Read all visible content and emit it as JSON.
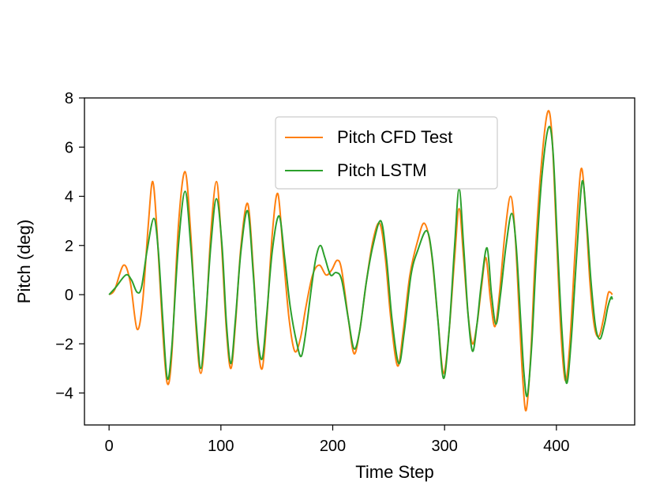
{
  "chart_data": {
    "type": "line",
    "title": "",
    "xlabel": "Time Step",
    "ylabel": "Pitch (deg)",
    "xlim": [
      -22,
      470
    ],
    "ylim": [
      -5.3,
      8
    ],
    "xticks": [
      0,
      100,
      200,
      300,
      400
    ],
    "yticks": [
      -4,
      -2,
      0,
      2,
      4,
      6,
      8
    ],
    "xtick_labels": [
      "0",
      "100",
      "200",
      "300",
      "400"
    ],
    "ytick_labels": [
      "−4",
      "−2",
      "0",
      "2",
      "4",
      "6",
      "8"
    ],
    "legend_position": "upper-center",
    "series": [
      {
        "name": "Pitch CFD Test",
        "color": "#ff7f0e",
        "points": [
          [
            0,
            0
          ],
          [
            5,
            0.2
          ],
          [
            13,
            1.2
          ],
          [
            19,
            0.5
          ],
          [
            25,
            -1.4
          ],
          [
            30,
            -0.3
          ],
          [
            35,
            2.8
          ],
          [
            39,
            4.6
          ],
          [
            43,
            2.5
          ],
          [
            48,
            -1.5
          ],
          [
            52,
            -3.6
          ],
          [
            56,
            -2.5
          ],
          [
            62,
            2.8
          ],
          [
            68,
            5.0
          ],
          [
            73,
            2.5
          ],
          [
            78,
            -1.5
          ],
          [
            82,
            -3.2
          ],
          [
            86,
            -1.5
          ],
          [
            91,
            2.5
          ],
          [
            96,
            4.6
          ],
          [
            100,
            2.5
          ],
          [
            105,
            -1.5
          ],
          [
            109,
            -3.0
          ],
          [
            113,
            -1.2
          ],
          [
            118,
            2.0
          ],
          [
            124,
            3.7
          ],
          [
            129,
            1.0
          ],
          [
            133,
            -2.0
          ],
          [
            137,
            -3.0
          ],
          [
            141,
            -1.0
          ],
          [
            146,
            2.5
          ],
          [
            151,
            4.1
          ],
          [
            156,
            1.5
          ],
          [
            161,
            -1.0
          ],
          [
            166,
            -2.3
          ],
          [
            171,
            -1.8
          ],
          [
            176,
            -0.5
          ],
          [
            182,
            0.8
          ],
          [
            188,
            1.2
          ],
          [
            194,
            0.8
          ],
          [
            199,
            1.0
          ],
          [
            204,
            1.4
          ],
          [
            208,
            1.0
          ],
          [
            214,
            -1.0
          ],
          [
            219,
            -2.4
          ],
          [
            224,
            -1.5
          ],
          [
            230,
            0.5
          ],
          [
            236,
            2.2
          ],
          [
            242,
            2.9
          ],
          [
            247,
            1.5
          ],
          [
            252,
            -1.0
          ],
          [
            258,
            -2.9
          ],
          [
            263,
            -1.5
          ],
          [
            269,
            0.8
          ],
          [
            276,
            2.2
          ],
          [
            282,
            2.9
          ],
          [
            288,
            1.8
          ],
          [
            294,
            -1.0
          ],
          [
            299,
            -3.2
          ],
          [
            304,
            -1.5
          ],
          [
            309,
            1.5
          ],
          [
            313,
            3.5
          ],
          [
            317,
            1.5
          ],
          [
            321,
            -0.8
          ],
          [
            325,
            -2.0
          ],
          [
            329,
            -1.2
          ],
          [
            333,
            0.3
          ],
          [
            337,
            1.5
          ],
          [
            341,
            -0.2
          ],
          [
            345,
            -1.3
          ],
          [
            349,
            0.0
          ],
          [
            354,
            2.5
          ],
          [
            359,
            4.0
          ],
          [
            363,
            2.5
          ],
          [
            367,
            -1.0
          ],
          [
            370,
            -3.5
          ],
          [
            373,
            -4.7
          ],
          [
            377,
            -2.5
          ],
          [
            381,
            1.5
          ],
          [
            386,
            5.0
          ],
          [
            392,
            7.4
          ],
          [
            396,
            6.5
          ],
          [
            400,
            2.5
          ],
          [
            404,
            -1.5
          ],
          [
            408,
            -3.5
          ],
          [
            412,
            -2.0
          ],
          [
            417,
            2.0
          ],
          [
            422,
            5.1
          ],
          [
            426,
            3.5
          ],
          [
            430,
            0.5
          ],
          [
            434,
            -1.3
          ],
          [
            438,
            -1.7
          ],
          [
            442,
            -1.0
          ],
          [
            446,
            0.0
          ],
          [
            448,
            0.1
          ],
          [
            450,
            0.0
          ]
        ]
      },
      {
        "name": "Pitch LSTM",
        "color": "#2ca02c",
        "points": [
          [
            0,
            0
          ],
          [
            6,
            0.3
          ],
          [
            15,
            0.8
          ],
          [
            20,
            0.6
          ],
          [
            25,
            0.1
          ],
          [
            29,
            0.3
          ],
          [
            34,
            1.8
          ],
          [
            40,
            3.1
          ],
          [
            44,
            1.8
          ],
          [
            48,
            -1.0
          ],
          [
            52,
            -3.4
          ],
          [
            56,
            -2.2
          ],
          [
            62,
            2.0
          ],
          [
            68,
            4.2
          ],
          [
            73,
            2.0
          ],
          [
            78,
            -1.2
          ],
          [
            82,
            -3.0
          ],
          [
            86,
            -1.2
          ],
          [
            91,
            2.0
          ],
          [
            96,
            3.9
          ],
          [
            101,
            2.0
          ],
          [
            105,
            -1.2
          ],
          [
            109,
            -2.8
          ],
          [
            113,
            -1.0
          ],
          [
            118,
            1.8
          ],
          [
            124,
            3.4
          ],
          [
            129,
            0.8
          ],
          [
            133,
            -1.8
          ],
          [
            137,
            -2.6
          ],
          [
            141,
            -0.8
          ],
          [
            146,
            1.8
          ],
          [
            152,
            3.2
          ],
          [
            157,
            1.5
          ],
          [
            162,
            -0.5
          ],
          [
            168,
            -2.0
          ],
          [
            172,
            -2.5
          ],
          [
            176,
            -1.5
          ],
          [
            181,
            0.3
          ],
          [
            185,
            1.5
          ],
          [
            189,
            2.0
          ],
          [
            193,
            1.5
          ],
          [
            198,
            0.8
          ],
          [
            203,
            0.9
          ],
          [
            208,
            0.6
          ],
          [
            214,
            -1.0
          ],
          [
            219,
            -2.2
          ],
          [
            224,
            -1.5
          ],
          [
            230,
            0.5
          ],
          [
            236,
            2.0
          ],
          [
            243,
            3.0
          ],
          [
            248,
            1.5
          ],
          [
            253,
            -1.0
          ],
          [
            259,
            -2.8
          ],
          [
            264,
            -1.5
          ],
          [
            270,
            0.8
          ],
          [
            276,
            1.8
          ],
          [
            284,
            2.6
          ],
          [
            289,
            1.5
          ],
          [
            294,
            -1.0
          ],
          [
            299,
            -3.4
          ],
          [
            304,
            -1.5
          ],
          [
            309,
            2.0
          ],
          [
            313,
            4.3
          ],
          [
            317,
            2.0
          ],
          [
            321,
            -0.8
          ],
          [
            325,
            -2.3
          ],
          [
            329,
            -1.2
          ],
          [
            333,
            0.5
          ],
          [
            338,
            1.9
          ],
          [
            342,
            0.0
          ],
          [
            346,
            -1.2
          ],
          [
            350,
            0.0
          ],
          [
            355,
            2.0
          ],
          [
            360,
            3.3
          ],
          [
            364,
            2.0
          ],
          [
            368,
            -1.0
          ],
          [
            371,
            -3.2
          ],
          [
            374,
            -4.1
          ],
          [
            378,
            -2.0
          ],
          [
            382,
            1.5
          ],
          [
            387,
            4.8
          ],
          [
            393,
            6.8
          ],
          [
            397,
            5.8
          ],
          [
            401,
            2.0
          ],
          [
            405,
            -1.5
          ],
          [
            409,
            -3.6
          ],
          [
            413,
            -2.0
          ],
          [
            418,
            1.5
          ],
          [
            423,
            4.6
          ],
          [
            427,
            3.0
          ],
          [
            431,
            0.5
          ],
          [
            435,
            -1.3
          ],
          [
            439,
            -1.8
          ],
          [
            443,
            -1.2
          ],
          [
            446,
            -0.5
          ],
          [
            449,
            -0.1
          ],
          [
            450,
            -0.2
          ]
        ]
      }
    ]
  }
}
